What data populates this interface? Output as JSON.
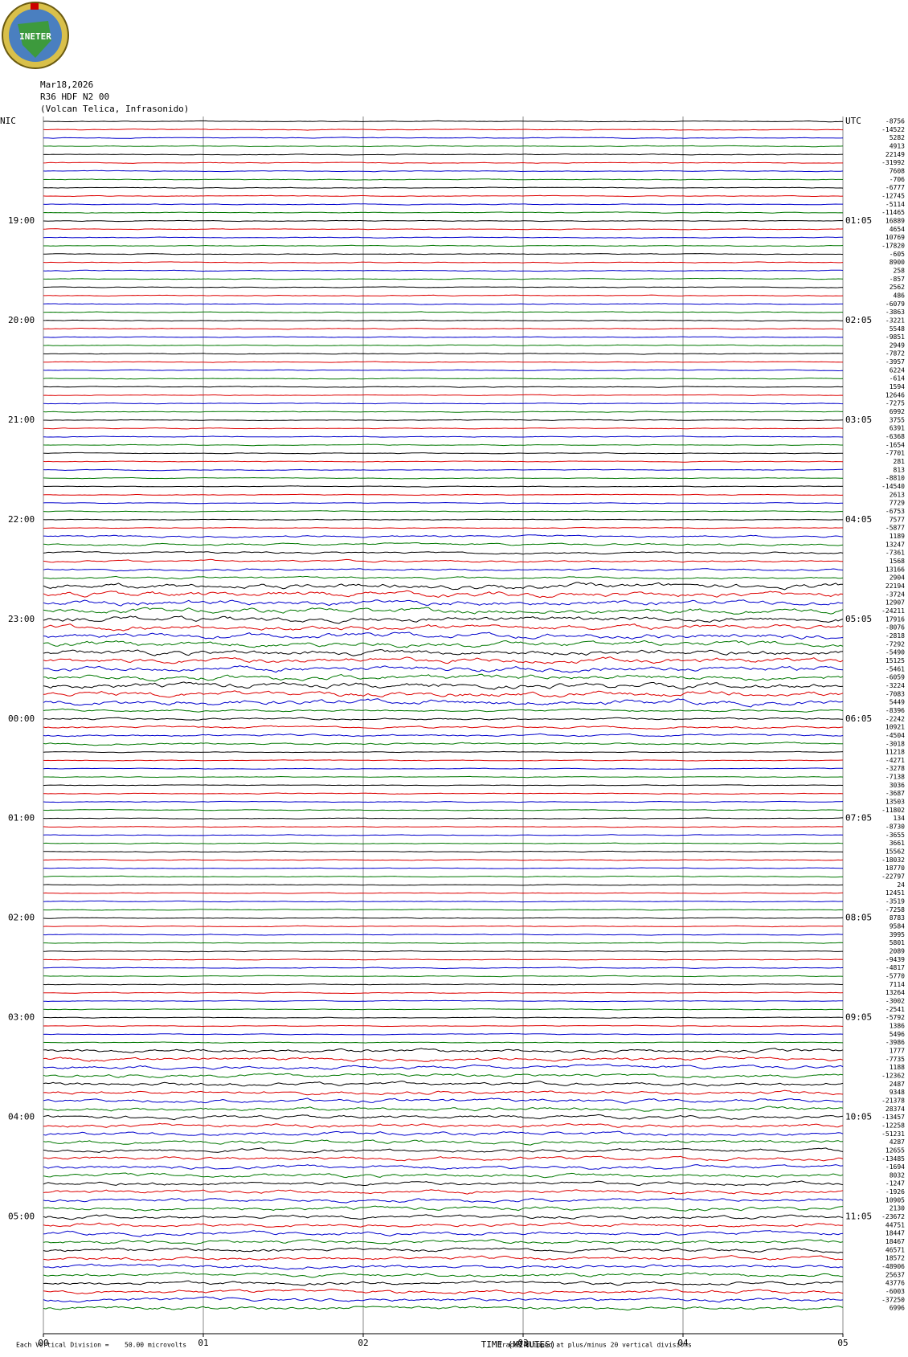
{
  "logo": "INETER",
  "header": {
    "date": "Mar18,2026",
    "station": "R36 HDF N2 00",
    "location": "(Volcan Telica, Infrasonido)"
  },
  "left_labels": [
    "NIC",
    "19:00",
    "20:00",
    "21:00",
    "22:00",
    "23:00",
    "00:00",
    "01:00",
    "02:00",
    "03:00",
    "04:00",
    "05:00"
  ],
  "right_labels": [
    "UTC",
    "01:05",
    "02:05",
    "03:05",
    "04:05",
    "05:05",
    "06:05",
    "07:05",
    "08:05",
    "09:05",
    "10:05",
    "11:05"
  ],
  "trace_offsets": [
    "-8756",
    "-14522",
    "5282",
    "4913",
    "22149",
    "-31992",
    "7608",
    "-706",
    "-6777",
    "-12745",
    "-5114",
    "-11465",
    "16889",
    "4654",
    "10769",
    "-17820",
    "-605",
    "8900",
    "258",
    "-857",
    "2562",
    "486",
    "-6079",
    "-3863",
    "-3221",
    "5548",
    "-9851",
    "2949",
    "-7872",
    "-3957",
    "6224",
    "-614",
    "1594",
    "12646",
    "-7275",
    "6992",
    "3755",
    "6391",
    "-6368",
    "-1654",
    "-7701",
    "281",
    "813",
    "-8810",
    "-14540",
    "2613",
    "7729",
    "-6753",
    "7577",
    "-5877",
    "1189",
    "13247",
    "-7361",
    "1568",
    "13166",
    "2904",
    "22194",
    "-3724",
    "12907",
    "-24211",
    "17916",
    "-8076",
    "-2818",
    "-7292",
    "-5490",
    "15125",
    "-5461",
    "-6059",
    "-3224",
    "-7083",
    "5449",
    "-8396",
    "-2242",
    "10921",
    "-4504",
    "-3018",
    "11218",
    "-4271",
    "-3278",
    "-7138",
    "3036",
    "-3687",
    "13503",
    "-11802",
    "134",
    "-8730",
    "-3655",
    "3661",
    "15562",
    "-18032",
    "18770",
    "-22797",
    "24",
    "12451",
    "-3519",
    "-7258",
    "8783",
    "9584",
    "3995",
    "5801",
    "2089",
    "-9439",
    "-4817",
    "-5770",
    "7114",
    "13264",
    "-3002",
    "-2541",
    "-5792",
    "1386",
    "5496",
    "-3986",
    "1777",
    "-7735",
    "1188",
    "-12362",
    "2487",
    "9348",
    "-21378",
    "28374",
    "-13457",
    "-12258",
    "-51231",
    "4287",
    "12655",
    "-13485",
    "-1694",
    "8032",
    "-1247",
    "-1926",
    "10905",
    "2130",
    "-23672",
    "44751",
    "18447",
    "18467",
    "46571",
    "18572",
    "-48906",
    "25637",
    "43776",
    "-6003",
    "-37250",
    "6996"
  ],
  "x_axis": {
    "ticks": [
      "00",
      "01",
      "02",
      "03",
      "04",
      "05"
    ],
    "title": "TIME (MINUTES)"
  },
  "footer": {
    "division": "Each Vertical Division =",
    "microvolts": "50.00 microvolts",
    "clipped": "Traces clipped at plus/minus 20 vertical divisions"
  }
}
